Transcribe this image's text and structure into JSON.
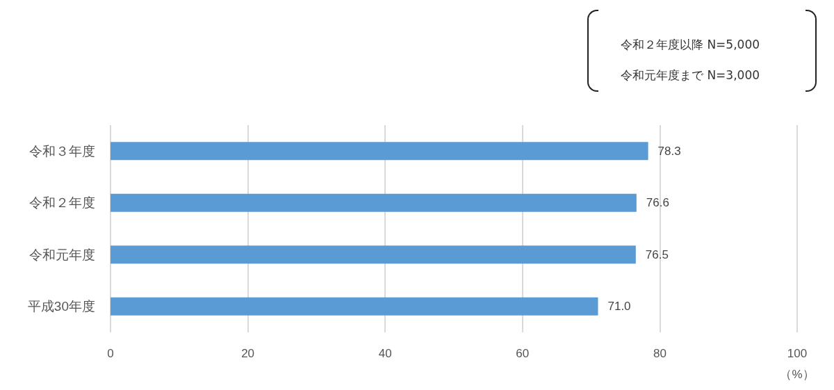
{
  "chart_data": {
    "type": "bar",
    "orientation": "horizontal",
    "categories": [
      "令和３年度",
      "令和２年度",
      "令和元年度",
      "平成30年度"
    ],
    "values": [
      78.3,
      76.6,
      76.5,
      71.0
    ],
    "value_labels": [
      "78.3",
      "76.6",
      "76.5",
      "71.0"
    ],
    "color": "#5b9bd5",
    "xlim": [
      0,
      100
    ],
    "xticks": [
      0,
      20,
      40,
      60,
      80,
      100
    ],
    "xlabel": "（%）",
    "grid": "x",
    "annotations": [
      "令和２年度以降 N=5,000",
      "令和元年度まで N=3,000"
    ]
  }
}
